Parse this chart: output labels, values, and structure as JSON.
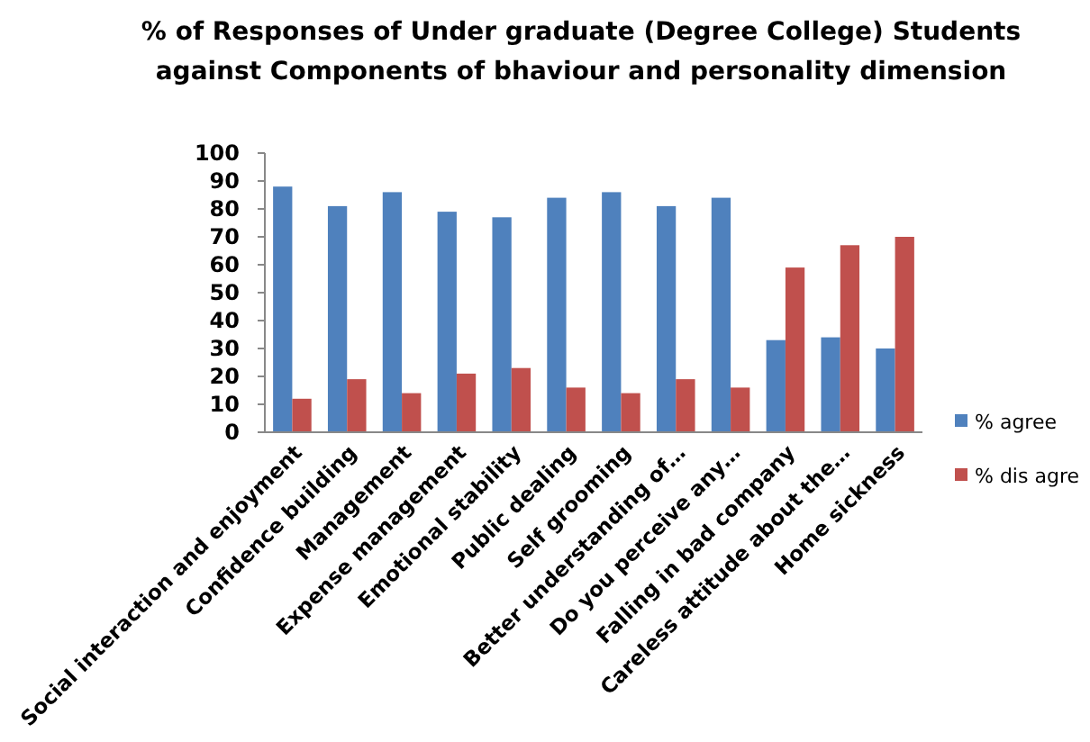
{
  "chart_data": {
    "type": "bar",
    "title": "% of Responses of Under graduate (Degree College) Students against Components of bhaviour and personality dimension",
    "categories": [
      "Social interaction and enjoyment",
      "Confidence building",
      "Management",
      "Expense management",
      "Emotional  stability",
      "Public dealing",
      "Self grooming",
      "Better understanding of…",
      "Do you perceive any…",
      "Falling  in bad company",
      "Careless attitude about  the…",
      "Home sickness"
    ],
    "series": [
      {
        "name": "% agree",
        "color": "#4f81bd",
        "values": [
          88,
          81,
          86,
          79,
          77,
          84,
          86,
          81,
          84,
          33,
          34,
          30
        ]
      },
      {
        "name": "% dis agre",
        "color": "#c0504d",
        "values": [
          12,
          19,
          14,
          21,
          23,
          16,
          14,
          19,
          16,
          59,
          67,
          70
        ]
      }
    ],
    "ylim": [
      0,
      100
    ],
    "yticks": [
      0,
      10,
      20,
      30,
      40,
      50,
      60,
      70,
      80,
      90,
      100
    ],
    "legend": "right",
    "grid": false
  }
}
